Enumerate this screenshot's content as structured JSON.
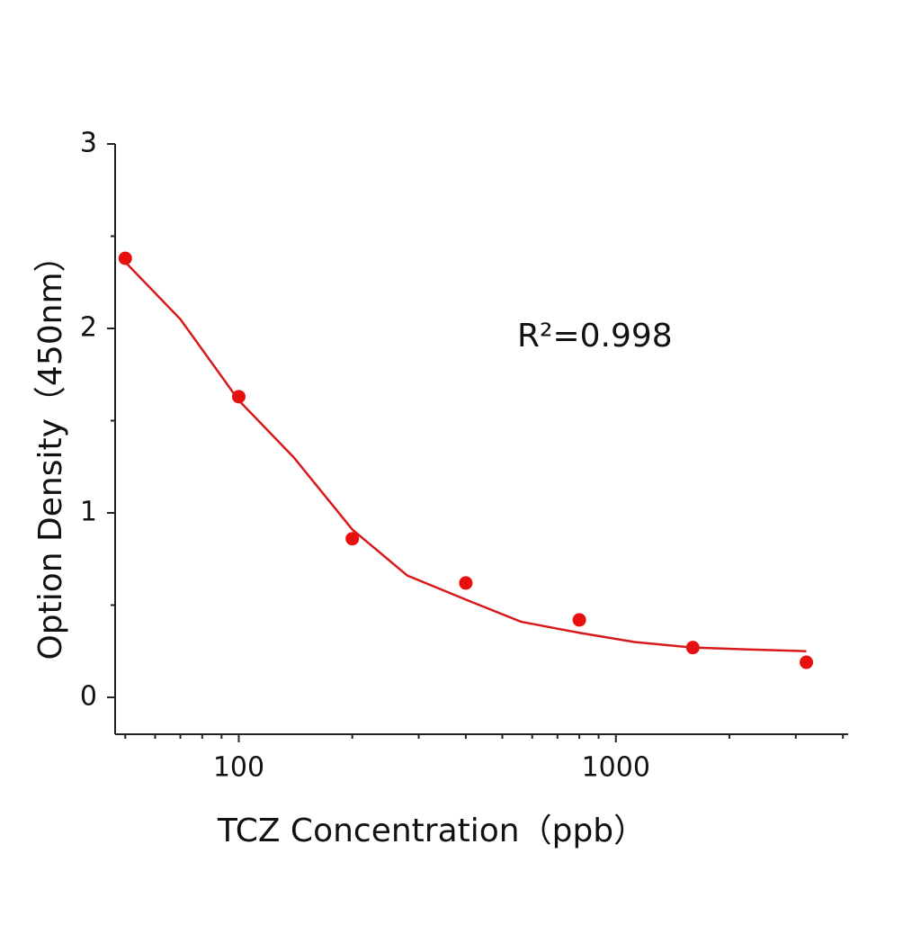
{
  "chart_data": {
    "type": "scatter",
    "xlabel": "TCZ Concentration（ppb）",
    "ylabel": "Option Density（450nm）",
    "annotation": "R²=0.998",
    "xscale": "log",
    "xlim": [
      47,
      4130
    ],
    "ylim": [
      -0.2,
      3
    ],
    "xticks": [
      100,
      1000
    ],
    "xminor_ticks": [
      50,
      60,
      70,
      80,
      90,
      200,
      300,
      400,
      500,
      600,
      700,
      800,
      900,
      2000,
      3000,
      4000
    ],
    "yticks": [
      0,
      1,
      2,
      3
    ],
    "yminor_ticks": [
      0.5,
      1.5,
      2.5
    ],
    "series": [
      {
        "kind": "points",
        "color": "#e8100f",
        "x": [
          50,
          100,
          200,
          400,
          800,
          1600,
          3200
        ],
        "values": [
          2.38,
          1.63,
          0.86,
          0.62,
          0.42,
          0.27,
          0.19
        ]
      },
      {
        "kind": "fit",
        "color": "#d7191a",
        "x": [
          50,
          70,
          100,
          140,
          200,
          280,
          400,
          560,
          800,
          1120,
          1600,
          2240,
          3200
        ],
        "values": [
          2.36,
          2.05,
          1.61,
          1.3,
          0.91,
          0.66,
          0.53,
          0.41,
          0.35,
          0.3,
          0.27,
          0.26,
          0.25
        ]
      }
    ]
  }
}
